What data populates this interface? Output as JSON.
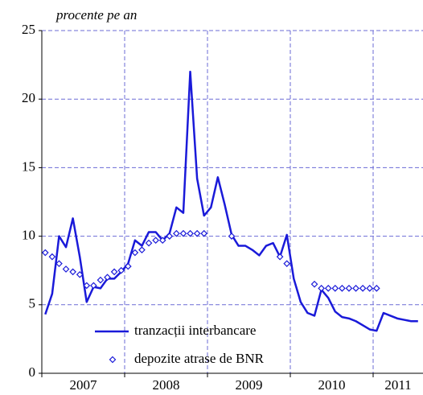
{
  "chart_data": {
    "type": "line",
    "subtitle": "procente pe an",
    "categories": [
      null,
      null,
      null,
      null,
      null,
      null,
      null,
      null,
      null,
      null,
      null,
      null,
      null,
      null,
      null,
      null,
      null,
      null,
      null,
      null,
      null,
      null,
      null,
      null,
      null,
      null,
      null,
      null,
      null,
      null,
      null,
      null,
      null,
      null,
      null,
      null,
      null,
      null,
      null,
      null,
      null,
      null,
      null,
      null,
      null,
      null,
      null,
      null,
      null,
      null,
      null,
      null,
      null,
      null,
      null
    ],
    "year_labels": [
      "2007",
      "2008",
      "2009",
      "2010",
      "2011"
    ],
    "series": [
      {
        "name": "tranzacții interbancare",
        "color": "#1a1ad9",
        "marker": "line",
        "values": [
          4.3,
          5.8,
          10.0,
          9.2,
          11.3,
          8.5,
          5.2,
          6.3,
          6.2,
          6.9,
          6.9,
          7.4,
          8.0,
          9.7,
          9.3,
          10.3,
          10.3,
          9.7,
          10.2,
          12.1,
          11.7,
          22.0,
          14.2,
          11.5,
          12.1,
          14.3,
          12.3,
          10.1,
          9.3,
          9.3,
          9.0,
          8.6,
          9.3,
          9.5,
          8.5,
          10.1,
          6.9,
          5.2,
          4.4,
          4.2,
          6.1,
          5.5,
          4.5,
          4.1,
          4.0,
          3.8,
          3.5,
          3.2,
          3.1,
          4.4,
          4.2,
          4.0,
          3.9,
          3.8,
          3.8
        ]
      },
      {
        "name": "depozite atrase de BNR",
        "color": "#1a1ad9",
        "marker": "diamond",
        "values": [
          8.8,
          8.5,
          8.0,
          7.6,
          7.4,
          7.2,
          6.4,
          6.4,
          6.8,
          7.0,
          7.4,
          7.5,
          7.8,
          8.8,
          9.0,
          9.5,
          9.7,
          9.7,
          10.0,
          10.2,
          10.2,
          10.2,
          10.2,
          10.2,
          null,
          null,
          null,
          10.0,
          null,
          null,
          null,
          null,
          null,
          null,
          8.5,
          8.0,
          null,
          null,
          null,
          6.5,
          6.2,
          6.2,
          6.2,
          6.2,
          6.2,
          6.2,
          6.2,
          6.2,
          6.2,
          null,
          null,
          null,
          null,
          null,
          null
        ]
      }
    ],
    "ylim": [
      0,
      25
    ],
    "yticks": [
      0,
      5,
      10,
      15,
      20,
      25
    ],
    "grid": true,
    "legend": "lower left"
  }
}
